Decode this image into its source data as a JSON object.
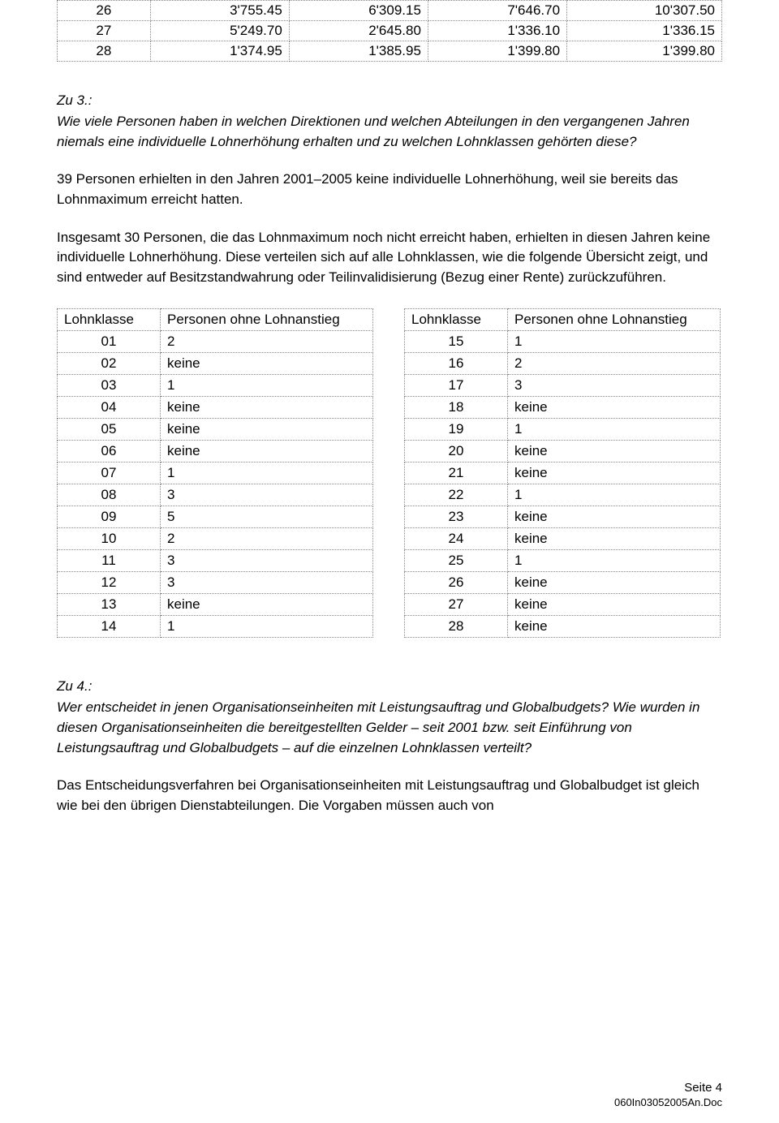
{
  "top_table": {
    "rows": [
      [
        "26",
        "3'755.45",
        "6'309.15",
        "7'646.70",
        "10'307.50"
      ],
      [
        "27",
        "5'249.70",
        "2'645.80",
        "1'336.10",
        "1'336.15"
      ],
      [
        "28",
        "1'374.95",
        "1'385.95",
        "1'399.80",
        "1'399.80"
      ]
    ]
  },
  "zu3": {
    "title": "Zu 3.:",
    "q": "Wie viele Personen haben in welchen Direktionen und welchen Abteilungen in den vergangenen Jahren niemals eine individuelle Lohnerhöhung erhalten und zu welchen Lohnklassen gehörten diese?",
    "p1": "39 Personen erhielten in den Jahren 2001–2005 keine individuelle Lohnerhöhung, weil sie bereits das Lohnmaximum erreicht hatten.",
    "p2": "Insgesamt 30 Personen, die das Lohnmaximum noch nicht erreicht haben, erhielten in diesen Jahren keine individuelle Lohnerhöhung. Diese verteilen sich auf alle Lohnklassen, wie die folgende Übersicht zeigt, und sind entweder auf Besitzstandwahrung oder Teilinvalidisierung (Bezug einer Rente) zurückzuführen."
  },
  "lk_header": {
    "c1": "Lohnklasse",
    "c2": "Personen ohne Lohnanstieg"
  },
  "lk_left": [
    [
      "01",
      "2"
    ],
    [
      "02",
      "keine"
    ],
    [
      "03",
      "1"
    ],
    [
      "04",
      "keine"
    ],
    [
      "05",
      "keine"
    ],
    [
      "06",
      "keine"
    ],
    [
      "07",
      "1"
    ],
    [
      "08",
      "3"
    ],
    [
      "09",
      "5"
    ],
    [
      "10",
      "2"
    ],
    [
      "11",
      "3"
    ],
    [
      "12",
      "3"
    ],
    [
      "13",
      "keine"
    ],
    [
      "14",
      "1"
    ]
  ],
  "lk_right": [
    [
      "15",
      "1"
    ],
    [
      "16",
      "2"
    ],
    [
      "17",
      "3"
    ],
    [
      "18",
      "keine"
    ],
    [
      "19",
      "1"
    ],
    [
      "20",
      "keine"
    ],
    [
      "21",
      "keine"
    ],
    [
      "22",
      "1"
    ],
    [
      "23",
      "keine"
    ],
    [
      "24",
      "keine"
    ],
    [
      "25",
      "1"
    ],
    [
      "26",
      "keine"
    ],
    [
      "27",
      "keine"
    ],
    [
      "28",
      "keine"
    ]
  ],
  "zu4": {
    "title": "Zu 4.:",
    "q": "Wer entscheidet in jenen Organisationseinheiten mit Leistungsauftrag und Globalbudgets? Wie wurden in diesen Organisationseinheiten die bereitgestellten Gelder – seit 2001 bzw. seit Einführung von Leistungsauftrag und Globalbudgets – auf die einzelnen Lohnklassen verteilt?",
    "p1": "Das Entscheidungsverfahren bei Organisationseinheiten mit Leistungsauftrag und Globalbudget ist gleich wie bei den übrigen Dienstabteilungen. Die Vorgaben müssen auch von"
  },
  "footer": {
    "page": "Seite 4",
    "doc": "060In03052005An.Doc"
  }
}
